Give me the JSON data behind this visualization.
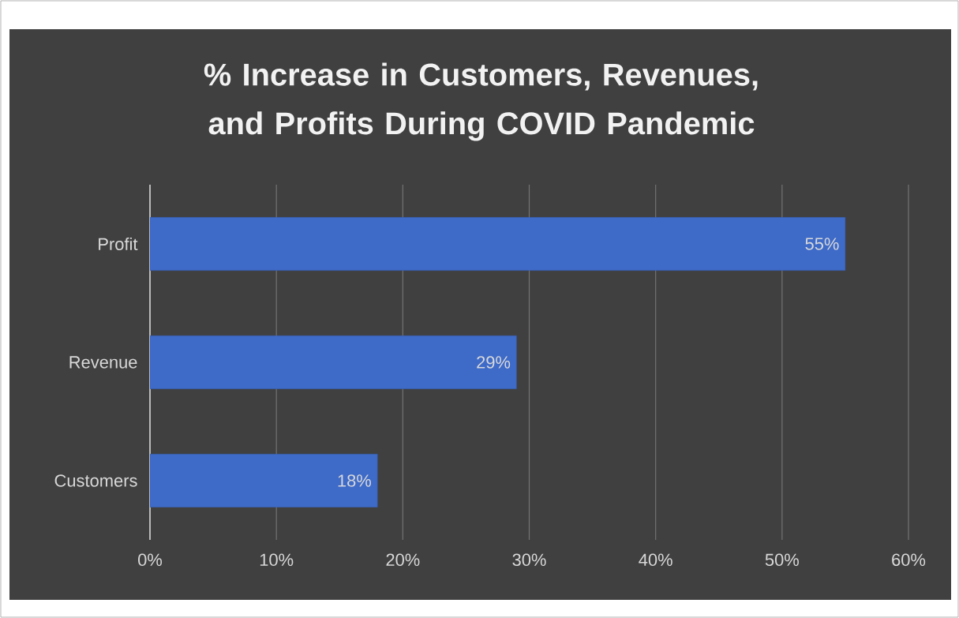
{
  "chart_data": {
    "type": "bar",
    "orientation": "horizontal",
    "title": "% Increase in Customers, Revenues, and Profits During COVID Pandemic",
    "categories": [
      "Profit",
      "Revenue",
      "Customers"
    ],
    "values": [
      55,
      29,
      18
    ],
    "value_labels": [
      "55%",
      "29%",
      "18%"
    ],
    "color": "#3e6ac8",
    "xlim": [
      0,
      60
    ],
    "xticks": [
      {
        "value": 0,
        "label": "0%"
      },
      {
        "value": 10,
        "label": "10%"
      },
      {
        "value": 20,
        "label": "20%"
      },
      {
        "value": 30,
        "label": "30%"
      },
      {
        "value": 40,
        "label": "40%"
      },
      {
        "value": 50,
        "label": "50%"
      },
      {
        "value": 60,
        "label": "60%"
      }
    ],
    "grid": "x"
  }
}
